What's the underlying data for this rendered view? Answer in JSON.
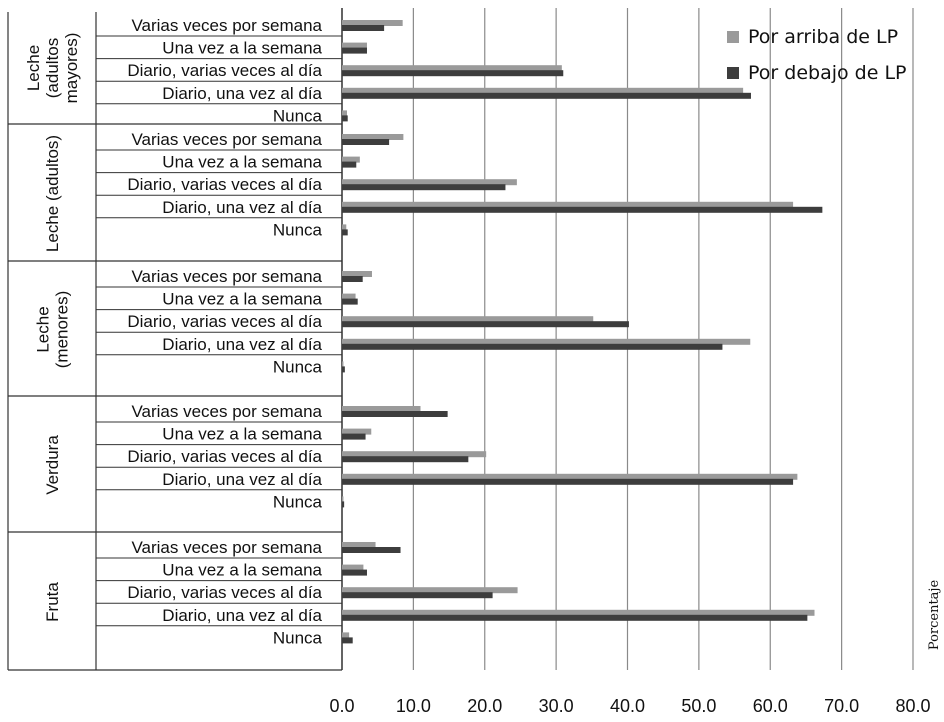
{
  "chart_data": {
    "type": "bar",
    "orientation": "horizontal",
    "categories": [
      "Varias veces por semana",
      "Una vez a la semana",
      "Diario, varias veces al día",
      "Diario, una vez al día",
      "Nunca"
    ],
    "groups": [
      {
        "label_lines": [
          "Leche",
          "(adultos",
          "mayores)"
        ],
        "series": [
          {
            "name": "Por arriba de LP",
            "values": [
              8.5,
              3.5,
              30.8,
              56.2,
              0.7
            ]
          },
          {
            "name": "Por debajo de LP",
            "values": [
              5.9,
              3.5,
              31.0,
              57.3,
              0.8
            ]
          }
        ]
      },
      {
        "label_lines": [
          "Leche (adultos)"
        ],
        "series": [
          {
            "name": "Por arriba de LP",
            "values": [
              8.6,
              2.5,
              24.5,
              63.2,
              0.6
            ]
          },
          {
            "name": "Por debajo de LP",
            "values": [
              6.6,
              2.0,
              22.9,
              67.3,
              0.8
            ]
          }
        ]
      },
      {
        "label_lines": [
          "Leche",
          "(menores)"
        ],
        "series": [
          {
            "name": "Por arriba de LP",
            "values": [
              4.2,
              1.9,
              35.2,
              57.2,
              0.2
            ]
          },
          {
            "name": "Por debajo de LP",
            "values": [
              2.9,
              2.2,
              40.2,
              53.3,
              0.4
            ]
          }
        ]
      },
      {
        "label_lines": [
          "Verdura"
        ],
        "series": [
          {
            "name": "Por arriba de LP",
            "values": [
              11.0,
              4.1,
              20.2,
              63.8,
              0.2
            ]
          },
          {
            "name": "Por debajo de LP",
            "values": [
              14.8,
              3.3,
              17.7,
              63.2,
              0.3
            ]
          }
        ]
      },
      {
        "label_lines": [
          "Fruta"
        ],
        "series": [
          {
            "name": "Por arriba de LP",
            "values": [
              4.7,
              3.0,
              24.6,
              66.2,
              1.0
            ]
          },
          {
            "name": "Por debajo de LP",
            "values": [
              8.2,
              3.5,
              21.1,
              65.2,
              1.5
            ]
          }
        ]
      }
    ],
    "legend": [
      {
        "name": "Por arriba de LP",
        "color": "#9a9a9a"
      },
      {
        "name": "Por debajo de LP",
        "color": "#3d3d3d"
      }
    ],
    "xlim": [
      0,
      80
    ],
    "xticks": [
      "0.0",
      "10.0",
      "20.0",
      "30.0",
      "40.0",
      "50.0",
      "60.0",
      "70.0",
      "80.0"
    ],
    "xlabel": "Porcentaje",
    "ylabel": "",
    "title": "",
    "grid": "vertical",
    "legend_position": "top-right"
  }
}
